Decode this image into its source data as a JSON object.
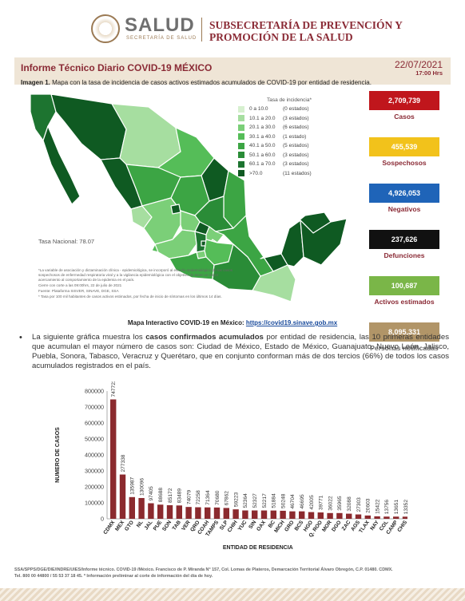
{
  "header": {
    "brand": "SALUD",
    "brand_subtitle": "SECRETARÍA DE SALUD",
    "subsecretaria": "SUBSECRETARÍA DE PREVENCIÓN Y PROMOCIÓN DE LA SALUD"
  },
  "report": {
    "title": "Informe Técnico Diario COVID-19 MÉXICO",
    "date": "22/07/2021",
    "time": "17:00 Hrs",
    "caption_bold": "Imagen 1.",
    "caption_text": " Mapa con la tasa de incidencia de casos activos estimados acumulados de COVID-19 por entidad de residencia."
  },
  "map": {
    "legend_title": "Tasa de incidencia*",
    "legend": [
      {
        "range": "0  a  10.0",
        "count": "(0 estados)",
        "color": "#d6f0cf"
      },
      {
        "range": "10.1 a  20.0",
        "count": "(3 estados)",
        "color": "#a6dea0"
      },
      {
        "range": "20.1 a  30.0",
        "count": "(6 estados)",
        "color": "#7bcf78"
      },
      {
        "range": "30.1 a  40.0",
        "count": "(1 estado)",
        "color": "#55bd58"
      },
      {
        "range": "40.1 a  50.0",
        "count": "(5 estados)",
        "color": "#3ca544"
      },
      {
        "range": "50.1 a  60.0",
        "count": "(3 estados)",
        "color": "#2a8c37"
      },
      {
        "range": "60.1 a  70.0",
        "count": "(3 estados)",
        "color": "#1d7430"
      },
      {
        "range": ">70.0",
        "count": "(11 estados)",
        "color": "#0f5a22"
      }
    ],
    "national_rate": "Tasa Nacional: 78.07",
    "notes": [
      "*La variable de asociación y dictaminación clínica - epidemiológica, se incorporó al estudio epidemiológico de los casos sospechosos de enfermedad respiratoria viral y a la vigilancia epidemiológica con el objetivo de tener un mejor acercamiento al comportamiento de la epidemia en el país.",
      "Cierre con corte a las 09:00hrs, 22 de julio de 2021",
      "Fuente: Plataforma SISVER, SINAVE, DGE, SSA",
      "* Tasa por 100 mil habitantes de casos activos estimados, por fecha de inicio de síntomas en los últimos 14 días."
    ]
  },
  "stats": [
    {
      "value": "2,709,739",
      "label": "Casos",
      "color": "#c0161c"
    },
    {
      "value": "455,539",
      "label": "Sospechosos",
      "color": "#f2c21b"
    },
    {
      "value": "4,926,053",
      "label": "Negativos",
      "color": "#1f64b8"
    },
    {
      "value": "237,626",
      "label": "Defunciones",
      "color": "#111111"
    },
    {
      "value": "100,687",
      "label": "Activos estimados",
      "color": "#7ab648"
    },
    {
      "value": "8,095,331",
      "label": "Personas notificadas",
      "color": "#b19568"
    }
  ],
  "interactive": {
    "label": "Mapa Interactivo COVID-19 en México: ",
    "url": "https://covid19.sinave.gob.mx"
  },
  "paragraph": {
    "before": "La siguiente gráfica muestra los ",
    "bold": "casos confirmados acumulados",
    "after": " por entidad de residencia, las 10 primeras entidades que acumulan el mayor número de casos son: Ciudad de México, Estado de México, Guanajuato, Nuevo León, Jalisco, Puebla, Sonora, Tabasco, Veracruz y Querétaro, que en conjunto conforman más de dos tercios (66%) de todos los casos acumulados registrados en el país."
  },
  "chart_data": {
    "type": "bar",
    "xlabel": "ENTIDAD DE RESIDENCIA",
    "ylabel": "NUMERO DE CASOS",
    "ylim": [
      0,
      800000
    ],
    "yticks": [
      "0",
      "100000",
      "200000",
      "300000",
      "400000",
      "500000",
      "600000",
      "700000",
      "800000"
    ],
    "bar_color": "#8b2a2e",
    "categories": [
      "CDMX",
      "MEX",
      "GTO",
      "NL",
      "JAL",
      "PUE",
      "SON",
      "TAB",
      "VER",
      "QRO",
      "COAH",
      "TAMPS",
      "SLP",
      "CHIH",
      "YUC",
      "SIN",
      "OAX",
      "BC",
      "MICH",
      "GRO",
      "BCS",
      "HGO",
      "Q. ROO",
      "MOR",
      "DGO",
      "ZAC",
      "AGS",
      "TLAX",
      "NAY",
      "COL",
      "CAMP",
      "CHIS"
    ],
    "values": [
      747723,
      277338,
      135987,
      130096,
      97405,
      88688,
      85172,
      83489,
      74079,
      72258,
      71364,
      70680,
      67862,
      59223,
      52364,
      52327,
      52217,
      51884,
      50248,
      46704,
      46695,
      42005,
      39771,
      36022,
      35965,
      32088,
      27303,
      20603,
      15422,
      13756,
      13651,
      13352
    ]
  },
  "footer": {
    "line1": "SSA/SPPS/DGE/DIE/INDRE/UIES/Informe técnico. COVID-19 /México. Francisco de P. Miranda N° 157, Col. Lomas de Plateros, Demarcación Territorial Álvaro Obregón, C.P. 01480. CDMX.",
    "line2": "Tel. 800 00 44800 / 55 53 37 18 45. * Información preliminar al corte de información del día de hoy."
  }
}
